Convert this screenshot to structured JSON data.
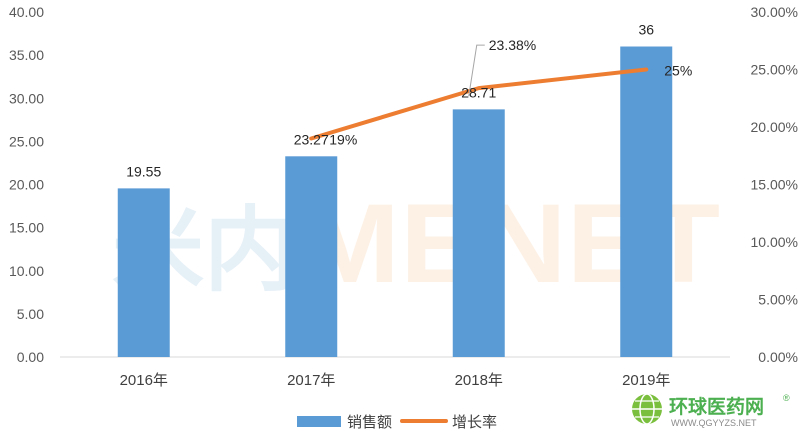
{
  "chart_data": {
    "type": "bar",
    "categories": [
      "2016年",
      "2017年",
      "2018年",
      "2019年"
    ],
    "series": [
      {
        "name": "销售额",
        "type": "bar",
        "axis": "left",
        "color": "#5b9bd5",
        "values": [
          19.55,
          23.27,
          28.71,
          36
        ],
        "labels": [
          "19.55",
          "23.27",
          "28.71",
          "36"
        ]
      },
      {
        "name": "增长率",
        "type": "line",
        "axis": "right",
        "color": "#ed7d31",
        "values": [
          null,
          0.19,
          0.2338,
          0.25
        ],
        "labels": [
          "",
          "19%",
          "23.38%",
          "25%"
        ]
      }
    ],
    "y_left": {
      "min": 0,
      "max": 40,
      "step": 5,
      "ticks": [
        "0.00",
        "5.00",
        "10.00",
        "15.00",
        "20.00",
        "25.00",
        "30.00",
        "35.00",
        "40.00"
      ]
    },
    "y_right": {
      "min": 0,
      "max": 0.3,
      "step": 0.05,
      "ticks": [
        "0.00%",
        "5.00%",
        "10.00%",
        "15.00%",
        "20.00%",
        "25.00%",
        "30.00%"
      ]
    },
    "grid": false,
    "legend": "bottom"
  },
  "watermark": {
    "text": "MENET",
    "glyphs": "米内"
  },
  "site_logo": {
    "name": "环球医药网",
    "url": "WWW.QGYYZS.NET",
    "reg_mark": "®",
    "icon": "globe-icon"
  }
}
